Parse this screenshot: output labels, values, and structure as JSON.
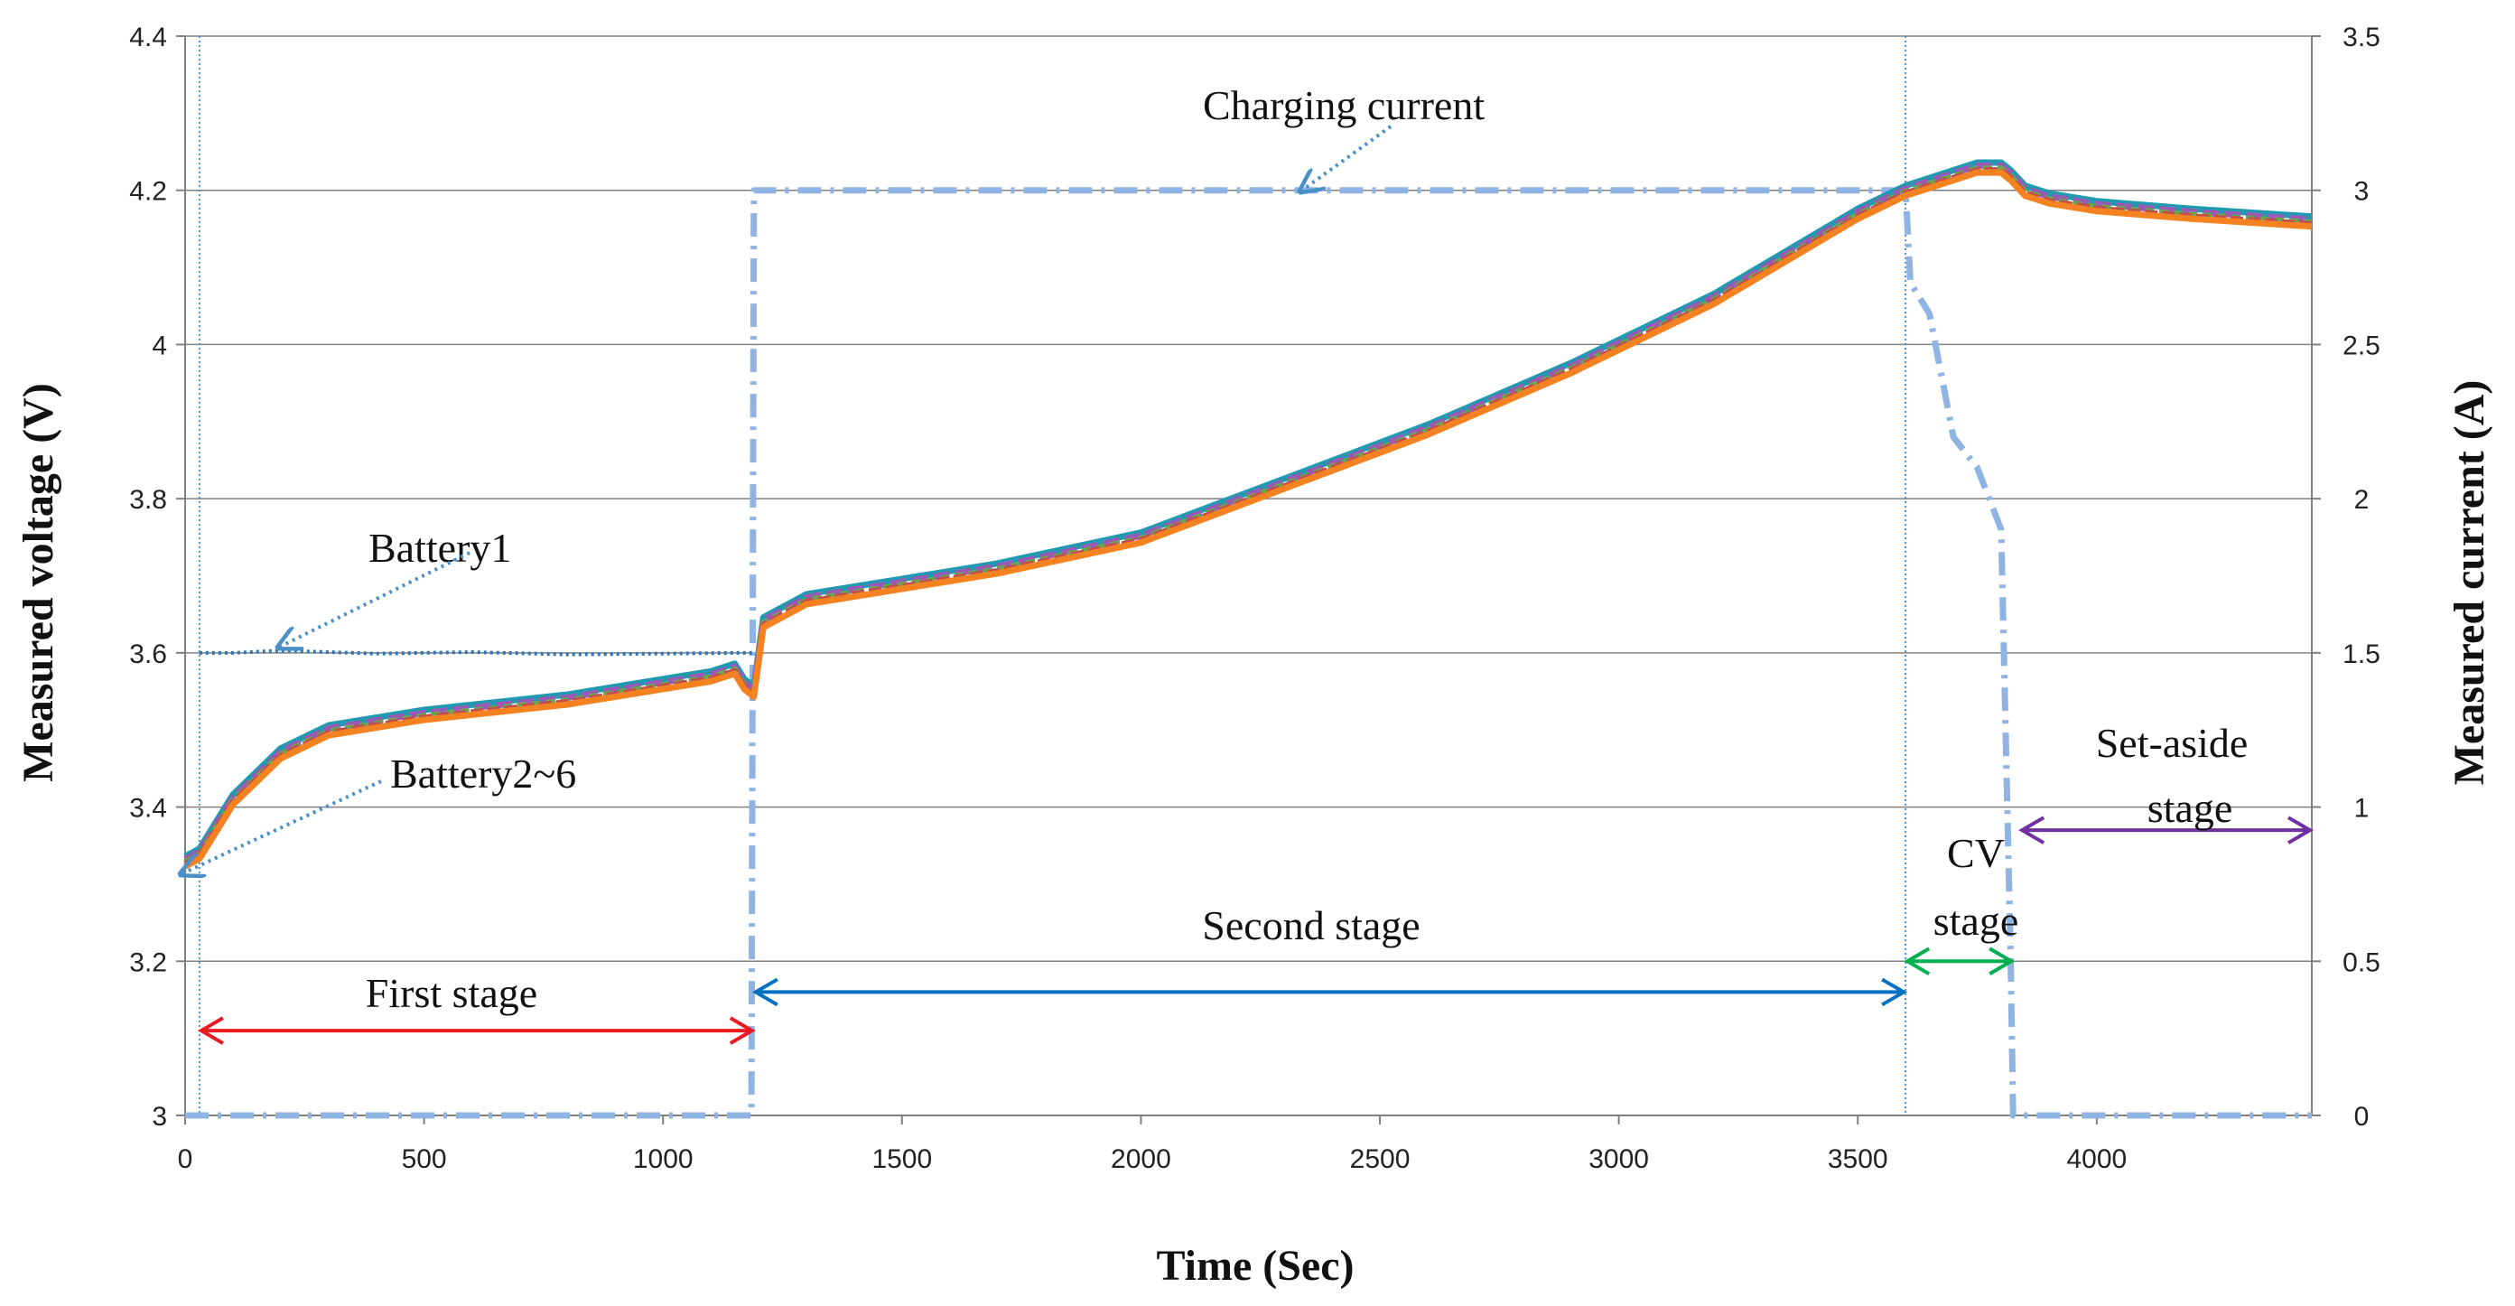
{
  "chart_data": {
    "type": "line",
    "xlabel": "Time (Sec)",
    "ylabel_left": "Measured voltage (V)",
    "ylabel_right": "Measured current (A)",
    "xlim": [
      0,
      4450
    ],
    "ylim_left": [
      3.0,
      4.4
    ],
    "ylim_right": [
      0,
      3.5
    ],
    "x_ticks": [
      0,
      500,
      1000,
      1500,
      2000,
      2500,
      3000,
      3500,
      4000
    ],
    "y_left_ticks": [
      3,
      3.2,
      3.4,
      3.6,
      3.8,
      4,
      4.2,
      4.4
    ],
    "y_left_tick_labels": [
      "3",
      "3.2",
      "3.4",
      "3.6",
      "3.8",
      "4",
      "4.2",
      "4.4"
    ],
    "y_right_ticks": [
      0,
      0.5,
      1,
      1.5,
      2,
      2.5,
      3,
      3.5
    ],
    "y_right_tick_labels": [
      "0",
      "0.5",
      "1",
      "1.5",
      "2",
      "2.5",
      "3",
      "3.5"
    ],
    "grid": true,
    "colors": {
      "battery1": "#2e75b6",
      "battery2": "#1f9ab0",
      "battery3": "#9b59b6",
      "battery4": "#6aa84f",
      "battery5": "#c0504d",
      "battery6": "#f58220",
      "current": "#8fb4e3",
      "first_stage": "#e81b23",
      "second_stage": "#0070c0",
      "cv_stage": "#00b050",
      "set_aside_stage": "#7030a0",
      "grid": "#808080",
      "marker_line": "#4a90c8"
    },
    "series": [
      {
        "name": "Battery1",
        "axis": "left",
        "x": [
          30,
          100,
          200,
          400,
          600,
          800,
          1000,
          1150,
          1190
        ],
        "y": [
          3.6,
          3.6,
          3.603,
          3.599,
          3.601,
          3.598,
          3.599,
          3.6,
          3.6
        ]
      },
      {
        "name": "Battery2~6",
        "axis": "left",
        "x": [
          0,
          30,
          100,
          200,
          300,
          500,
          800,
          1100,
          1150,
          1170,
          1190,
          1210,
          1300,
          1500,
          1700,
          2000,
          2300,
          2600,
          2900,
          3200,
          3500,
          3600,
          3650,
          3700,
          3750,
          3800,
          3820,
          3850,
          3900,
          4000,
          4200,
          4450
        ],
        "y": [
          3.33,
          3.34,
          3.41,
          3.47,
          3.5,
          3.52,
          3.54,
          3.57,
          3.58,
          3.56,
          3.55,
          3.64,
          3.67,
          3.69,
          3.71,
          3.75,
          3.82,
          3.89,
          3.97,
          4.06,
          4.17,
          4.2,
          4.21,
          4.22,
          4.23,
          4.23,
          4.22,
          4.2,
          4.19,
          4.18,
          4.17,
          4.16
        ]
      },
      {
        "name": "Charging current",
        "axis": "right",
        "x": [
          0,
          1185,
          1190,
          1200,
          1500,
          2000,
          2500,
          3000,
          3500,
          3600,
          3610,
          3650,
          3700,
          3750,
          3800,
          3820,
          3825,
          4450
        ],
        "y": [
          0,
          0,
          3.0,
          3.0,
          3.0,
          3.0,
          3.0,
          3.0,
          3.0,
          3.0,
          2.7,
          2.6,
          2.2,
          2.1,
          1.9,
          0.5,
          0,
          0
        ]
      }
    ],
    "stages": [
      {
        "label": "First stage",
        "x_start": 30,
        "x_end": 1190,
        "y": 3.11,
        "color": "first_stage"
      },
      {
        "label": "Second stage",
        "x_start": 1190,
        "x_end": 3600,
        "y": 3.16,
        "color": "second_stage"
      },
      {
        "label": "CV",
        "label2": "stage",
        "x_start": 3600,
        "x_end": 3825,
        "y": 3.2,
        "color": "cv_stage"
      },
      {
        "label": "Set-aside",
        "label2": "stage",
        "x_start": 3840,
        "x_end": 4450,
        "y": 3.37,
        "color": "set_aside_stage"
      }
    ],
    "annotations": [
      {
        "text": "Battery1"
      },
      {
        "text": "Battery2~6"
      },
      {
        "text": "Charging current"
      }
    ],
    "vertical_markers": [
      30,
      3600
    ]
  }
}
